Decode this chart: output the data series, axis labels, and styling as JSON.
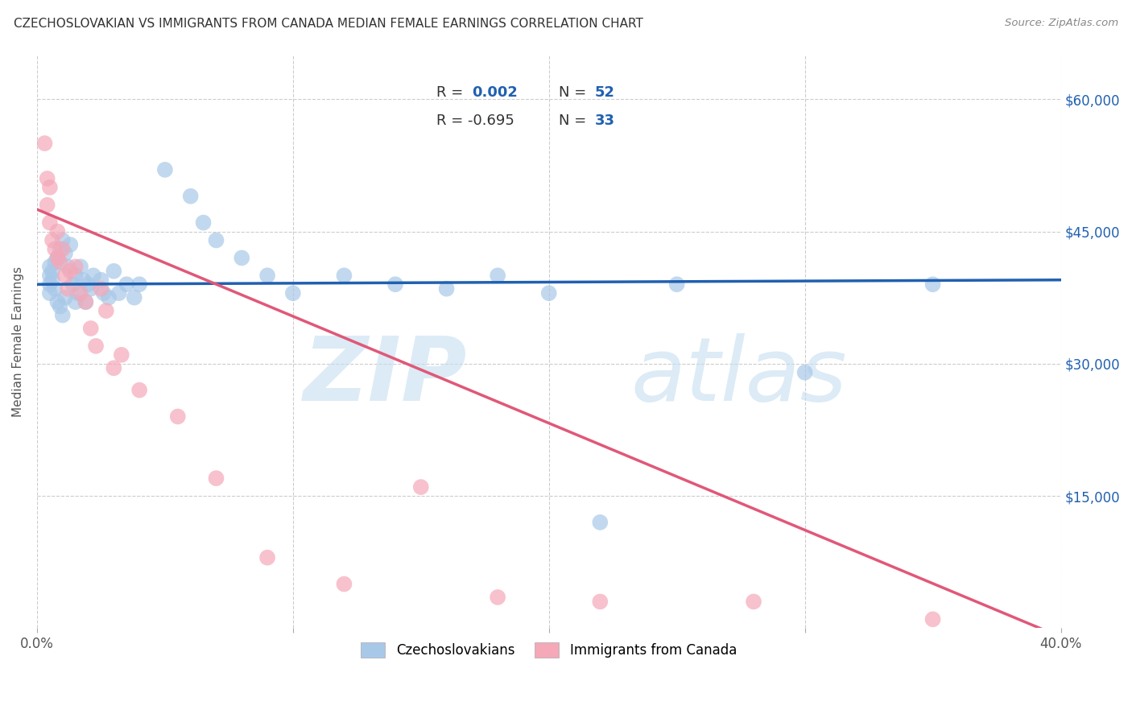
{
  "title": "CZECHOSLOVAKIAN VS IMMIGRANTS FROM CANADA MEDIAN FEMALE EARNINGS CORRELATION CHART",
  "source": "Source: ZipAtlas.com",
  "ylabel": "Median Female Earnings",
  "yticks": [
    0,
    15000,
    30000,
    45000,
    60000
  ],
  "ytick_labels": [
    "",
    "$15,000",
    "$30,000",
    "$45,000",
    "$60,000"
  ],
  "xlim": [
    0.0,
    0.4
  ],
  "ylim": [
    0,
    65000
  ],
  "background_color": "#ffffff",
  "grid_color": "#cccccc",
  "blue_color": "#a8c8e8",
  "pink_color": "#f4a8b8",
  "blue_line_color": "#2060b0",
  "pink_line_color": "#e05878",
  "blue_scatter_x": [
    0.005,
    0.005,
    0.005,
    0.005,
    0.006,
    0.006,
    0.007,
    0.007,
    0.008,
    0.008,
    0.009,
    0.009,
    0.01,
    0.01,
    0.011,
    0.011,
    0.012,
    0.013,
    0.014,
    0.015,
    0.015,
    0.016,
    0.017,
    0.018,
    0.019,
    0.02,
    0.021,
    0.022,
    0.025,
    0.026,
    0.028,
    0.03,
    0.032,
    0.035,
    0.038,
    0.04,
    0.05,
    0.06,
    0.065,
    0.07,
    0.08,
    0.09,
    0.1,
    0.12,
    0.14,
    0.16,
    0.18,
    0.2,
    0.22,
    0.25,
    0.3,
    0.35
  ],
  "blue_scatter_y": [
    41000,
    40000,
    39000,
    38000,
    40500,
    39500,
    41500,
    38500,
    42000,
    37000,
    43000,
    36500,
    44000,
    35500,
    42500,
    37500,
    41000,
    43500,
    39000,
    37000,
    40000,
    38000,
    41000,
    39500,
    37000,
    39000,
    38500,
    40000,
    39500,
    38000,
    37500,
    40500,
    38000,
    39000,
    37500,
    39000,
    52000,
    49000,
    46000,
    44000,
    42000,
    40000,
    38000,
    40000,
    39000,
    38500,
    40000,
    38000,
    12000,
    39000,
    29000,
    39000
  ],
  "pink_scatter_x": [
    0.003,
    0.004,
    0.004,
    0.005,
    0.005,
    0.006,
    0.007,
    0.008,
    0.008,
    0.009,
    0.01,
    0.011,
    0.012,
    0.013,
    0.015,
    0.017,
    0.019,
    0.021,
    0.023,
    0.025,
    0.027,
    0.03,
    0.033,
    0.04,
    0.055,
    0.07,
    0.09,
    0.12,
    0.15,
    0.18,
    0.22,
    0.28,
    0.35
  ],
  "pink_scatter_y": [
    55000,
    51000,
    48000,
    46000,
    50000,
    44000,
    43000,
    45000,
    42000,
    41500,
    43000,
    40000,
    38500,
    40500,
    41000,
    38000,
    37000,
    34000,
    32000,
    38500,
    36000,
    29500,
    31000,
    27000,
    24000,
    17000,
    8000,
    5000,
    16000,
    3500,
    3000,
    3000,
    1000
  ],
  "blue_line_x": [
    0.0,
    0.4
  ],
  "blue_line_y": [
    39000,
    39500
  ],
  "pink_line_x": [
    0.0,
    0.4
  ],
  "pink_line_y": [
    47500,
    -1000
  ],
  "x_tick_positions": [
    0.0,
    0.1,
    0.2,
    0.3,
    0.4
  ],
  "x_tick_labels": [
    "0.0%",
    "",
    "",
    "",
    "40.0%"
  ]
}
